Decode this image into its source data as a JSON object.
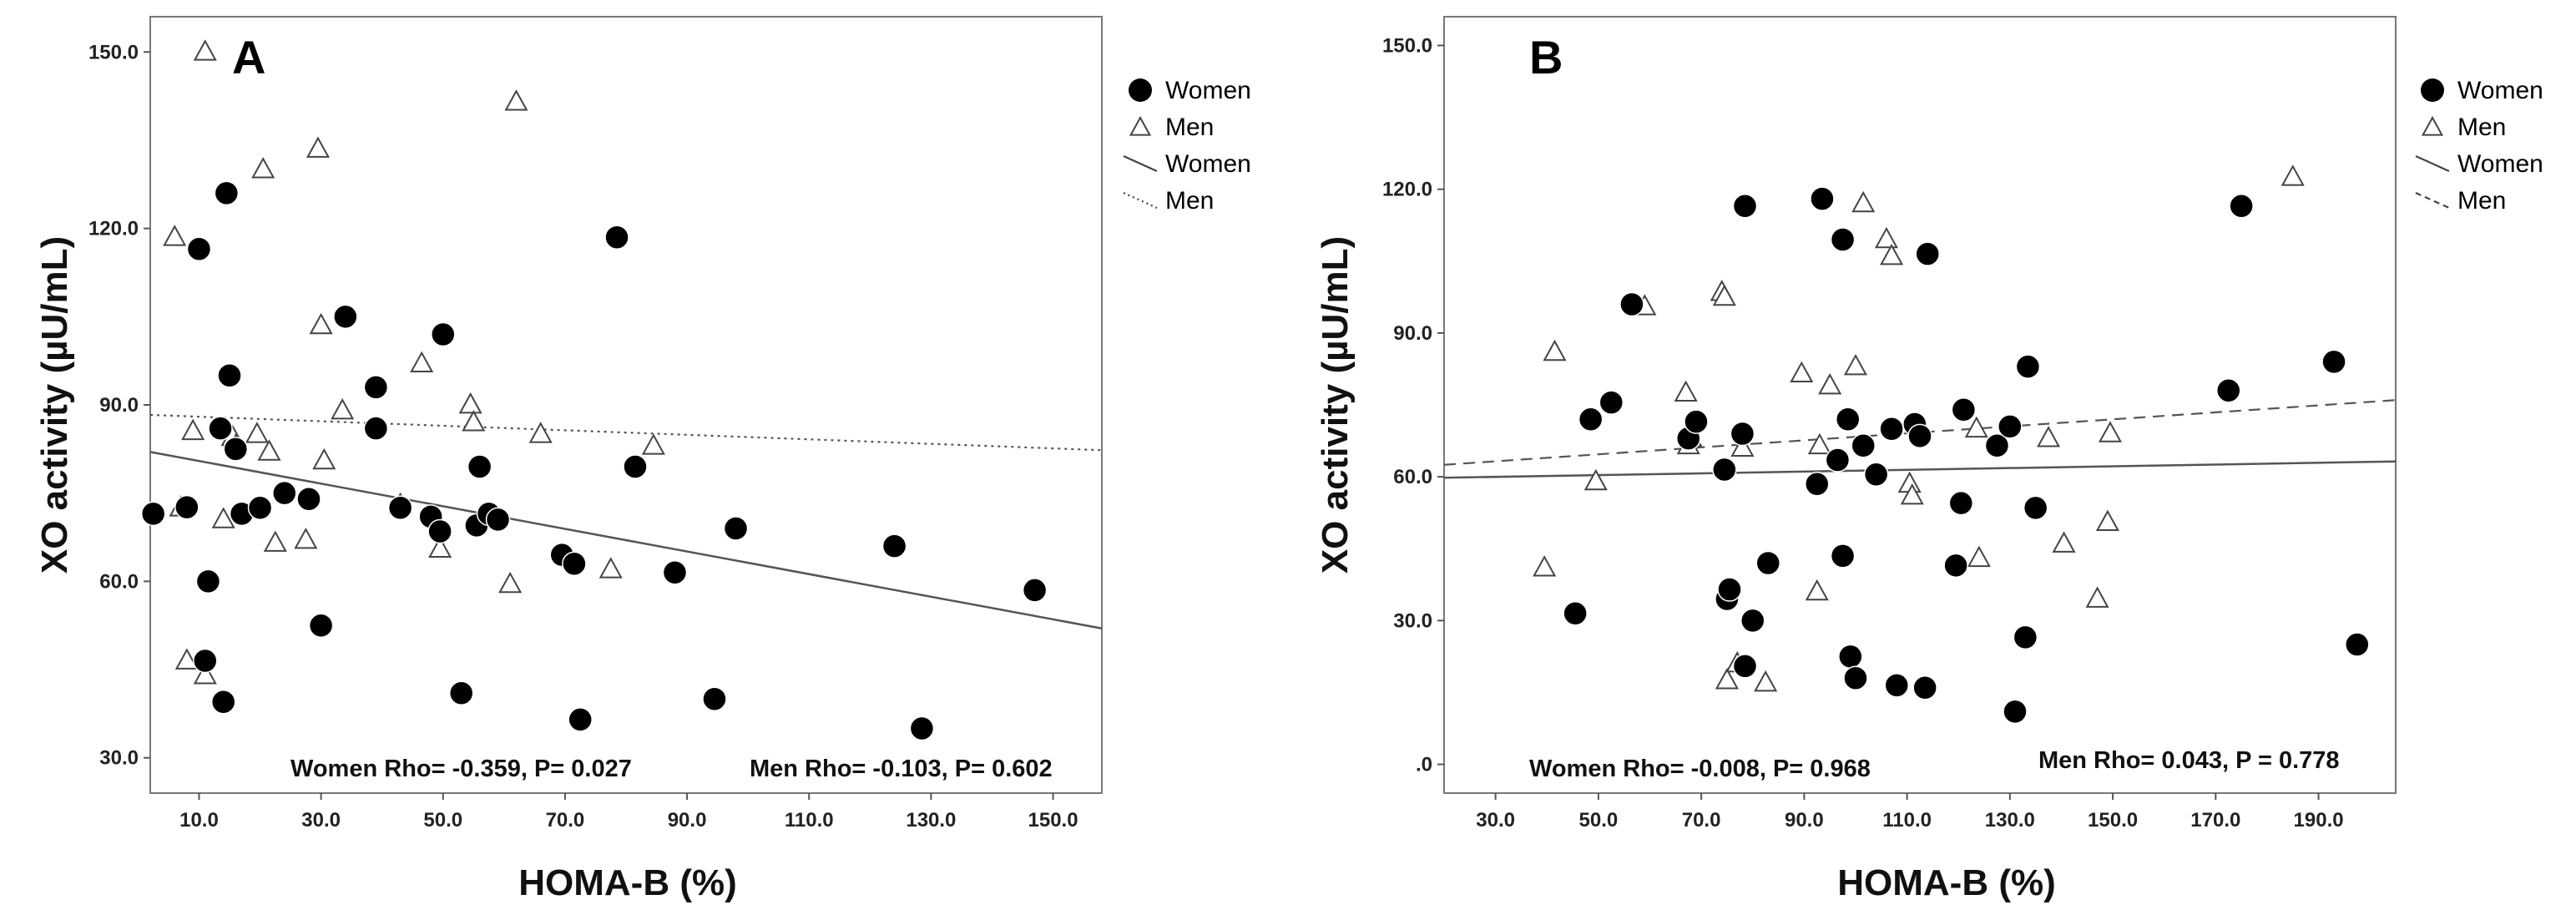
{
  "chart_data": [
    {
      "type": "scatter",
      "panel": "A",
      "xlabel": "HOMA-B (%)",
      "ylabel": "XO activity (µU/mL)",
      "xlim": [
        2,
        158
      ],
      "ylim": [
        24,
        156
      ],
      "xticks": [
        10,
        30,
        50,
        70,
        90,
        110,
        130,
        150
      ],
      "xtick_labels": [
        "10.0",
        "30.0",
        "50.0",
        "70.0",
        "90.0",
        "110.0",
        "130.0",
        "150.0"
      ],
      "yticks": [
        30,
        60,
        90,
        120,
        150
      ],
      "ytick_labels": [
        "30.0",
        "60.0",
        "90.0",
        "120.0",
        "150.0"
      ],
      "legend": [
        {
          "label": "Women",
          "kind": "marker-circle"
        },
        {
          "label": "Men",
          "kind": "marker-triangle"
        },
        {
          "label": "Women",
          "kind": "line-solid"
        },
        {
          "label": "Men",
          "kind": "line-dotted"
        }
      ],
      "stats": [
        {
          "label": "Women Rho= -0.359, P= 0.027"
        },
        {
          "label": "Men  Rho= -0.103, P= 0.602"
        }
      ],
      "series": [
        {
          "name": "Women",
          "marker": "circle",
          "points": [
            [
              2.5,
              71.5
            ],
            [
              8,
              72.6
            ],
            [
              10,
              116.5
            ],
            [
              11,
              46.5
            ],
            [
              11.5,
              60
            ],
            [
              13.5,
              86
            ],
            [
              14,
              39.5
            ],
            [
              14.5,
              126
            ],
            [
              15,
              95
            ],
            [
              16,
              82.5
            ],
            [
              17,
              71.5
            ],
            [
              20,
              72.5
            ],
            [
              24,
              75
            ],
            [
              28,
              74
            ],
            [
              30,
              52.5
            ],
            [
              34,
              105
            ],
            [
              39,
              93
            ],
            [
              39,
              86
            ],
            [
              43,
              72.5
            ],
            [
              48,
              71
            ],
            [
              49.5,
              68.5
            ],
            [
              50,
              102
            ],
            [
              53,
              41
            ],
            [
              55.5,
              69.5
            ],
            [
              56,
              79.5
            ],
            [
              57.5,
              71.5
            ],
            [
              59,
              70.5
            ],
            [
              69.5,
              64.5
            ],
            [
              71.5,
              63
            ],
            [
              72.5,
              36.5
            ],
            [
              78.5,
              118.5
            ],
            [
              81.5,
              79.5
            ],
            [
              88,
              61.5
            ],
            [
              94.5,
              40
            ],
            [
              98,
              69
            ],
            [
              124,
              66
            ],
            [
              128.5,
              35
            ],
            [
              147,
              58.5
            ]
          ]
        },
        {
          "name": "Men",
          "marker": "triangle",
          "points": [
            [
              6,
              118.5
            ],
            [
              7,
              72.5
            ],
            [
              8,
              46.5
            ],
            [
              9,
              85.5
            ],
            [
              11,
              150
            ],
            [
              11,
              44
            ],
            [
              14,
              70.5
            ],
            [
              15.5,
              84.5
            ],
            [
              16,
              83
            ],
            [
              19.5,
              85
            ],
            [
              20.5,
              130
            ],
            [
              21.5,
              82
            ],
            [
              22.5,
              66.5
            ],
            [
              27.5,
              67
            ],
            [
              29.5,
              133.5
            ],
            [
              30,
              103.5
            ],
            [
              30.5,
              80.5
            ],
            [
              33.5,
              89
            ],
            [
              43,
              73
            ],
            [
              46.5,
              97
            ],
            [
              49.5,
              65.5
            ],
            [
              54.5,
              90
            ],
            [
              55,
              87
            ],
            [
              61,
              59.5
            ],
            [
              62,
              141.5
            ],
            [
              66,
              85
            ],
            [
              77.5,
              62
            ],
            [
              84.5,
              83
            ]
          ]
        }
      ],
      "fit_lines": [
        {
          "name": "Women",
          "style": "solid",
          "x": [
            2,
            158
          ],
          "y": [
            82,
            52
          ]
        },
        {
          "name": "Men",
          "style": "dotted",
          "x": [
            2,
            158
          ],
          "y": [
            88.3,
            82.3
          ]
        }
      ]
    },
    {
      "type": "scatter",
      "panel": "B",
      "xlabel": "HOMA-B (%)",
      "ylabel": "XO activity (µU/mL)",
      "xlim": [
        20,
        205
      ],
      "ylim": [
        -6,
        156
      ],
      "xticks": [
        30,
        50,
        70,
        90,
        110,
        130,
        150,
        170,
        190
      ],
      "xtick_labels": [
        "30.0",
        "50.0",
        "70.0",
        "90.0",
        "110.0",
        "130.0",
        "150.0",
        "170.0",
        "190.0"
      ],
      "yticks": [
        0,
        30,
        60,
        90,
        120,
        150
      ],
      "ytick_labels": [
        ".0",
        "30.0",
        "60.0",
        "90.0",
        "120.0",
        "150.0"
      ],
      "legend": [
        {
          "label": "Women",
          "kind": "marker-circle"
        },
        {
          "label": "Men",
          "kind": "marker-triangle"
        },
        {
          "label": "Women",
          "kind": "line-solid"
        },
        {
          "label": "Men",
          "kind": "line-dashed"
        }
      ],
      "stats": [
        {
          "label": "Women Rho= -0.008, P= 0.968"
        },
        {
          "label": "Men   Rho= 0.043, P = 0.778"
        }
      ],
      "series": [
        {
          "name": "Women",
          "marker": "circle",
          "points": [
            [
              45.5,
              31.5
            ],
            [
              48.5,
              72
            ],
            [
              52.5,
              75.5
            ],
            [
              56.5,
              96
            ],
            [
              67.5,
              68
            ],
            [
              69,
              71.5
            ],
            [
              74.5,
              61.5
            ],
            [
              75,
              34.5
            ],
            [
              75.5,
              36.5
            ],
            [
              78,
              69
            ],
            [
              78.5,
              116.5
            ],
            [
              78.5,
              20.5
            ],
            [
              80,
              30
            ],
            [
              83,
              42
            ],
            [
              92.5,
              58.5
            ],
            [
              93.5,
              118
            ],
            [
              96.5,
              63.5
            ],
            [
              97.5,
              109.5
            ],
            [
              97.5,
              43.5
            ],
            [
              98.5,
              72
            ],
            [
              99,
              22.5
            ],
            [
              100,
              18
            ],
            [
              101.5,
              66.5
            ],
            [
              104,
              60.5
            ],
            [
              107,
              70
            ],
            [
              108,
              16.5
            ],
            [
              111.5,
              71
            ],
            [
              112.5,
              68.5
            ],
            [
              113.5,
              16
            ],
            [
              114,
              106.5
            ],
            [
              119.5,
              41.5
            ],
            [
              120.5,
              54.5
            ],
            [
              121,
              74
            ],
            [
              127.5,
              66.5
            ],
            [
              130,
              70.5
            ],
            [
              131,
              11
            ],
            [
              133,
              26.5
            ],
            [
              133.5,
              83
            ],
            [
              135,
              53.5
            ],
            [
              172.5,
              78
            ],
            [
              175,
              116.5
            ],
            [
              193,
              84
            ],
            [
              197.5,
              25
            ]
          ]
        },
        {
          "name": "Men",
          "marker": "triangle",
          "points": [
            [
              39.5,
              41
            ],
            [
              41.5,
              86
            ],
            [
              49.5,
              59
            ],
            [
              59,
              95.5
            ],
            [
              67,
              77.5
            ],
            [
              67.5,
              66.5
            ],
            [
              68,
              68
            ],
            [
              74,
              98.5
            ],
            [
              74.5,
              97.5
            ],
            [
              75,
              17.5
            ],
            [
              77,
              21
            ],
            [
              78,
              66
            ],
            [
              82.5,
              17
            ],
            [
              89.5,
              81.5
            ],
            [
              92.5,
              36
            ],
            [
              93,
              66.5
            ],
            [
              95,
              79
            ],
            [
              100,
              83
            ],
            [
              101.5,
              117
            ],
            [
              106,
              109.5
            ],
            [
              107,
              106
            ],
            [
              110.5,
              58.5
            ],
            [
              111,
              56
            ],
            [
              123.5,
              70
            ],
            [
              124,
              43
            ],
            [
              137.5,
              68
            ],
            [
              140.5,
              46
            ],
            [
              147,
              34.5
            ],
            [
              149,
              50.5
            ],
            [
              149.5,
              69
            ],
            [
              185,
              122.5
            ]
          ]
        }
      ],
      "fit_lines": [
        {
          "name": "Women",
          "style": "solid",
          "x": [
            20,
            205
          ],
          "y": [
            59.8,
            63.2
          ]
        },
        {
          "name": "Men",
          "style": "dashed",
          "x": [
            20,
            205
          ],
          "y": [
            62.5,
            76
          ]
        }
      ]
    }
  ]
}
